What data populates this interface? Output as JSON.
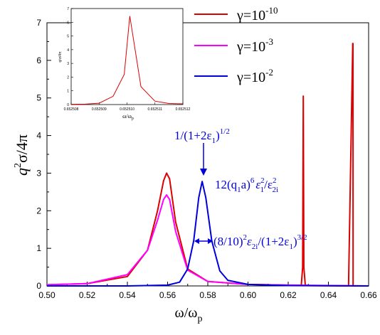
{
  "chart_data": {
    "type": "line",
    "xlabel_main": "ω/ω",
    "xlabel_sub": "p",
    "ylabel_parts": {
      "q": "q",
      "sup": "2",
      "rest": "σ/4π"
    },
    "xlim": [
      0.5,
      0.66
    ],
    "ylim": [
      0,
      7
    ],
    "xticks": [
      "0.50",
      "0.52",
      "0.54",
      "0.56",
      "0.58",
      "0.60",
      "0.62",
      "0.64",
      "0.66"
    ],
    "yticks": [
      "0",
      "1",
      "2",
      "3",
      "4",
      "5",
      "6",
      "7"
    ],
    "legend_position": "top-right",
    "series": [
      {
        "name": "γ=10",
        "exponent": "-10",
        "color": "#dd0000",
        "x": [
          0.5,
          0.52,
          0.54,
          0.55,
          0.555,
          0.558,
          0.5595,
          0.561,
          0.564,
          0.57,
          0.58,
          0.6,
          0.62,
          0.6265,
          0.6272,
          0.6275,
          0.6278,
          0.6285,
          0.63,
          0.65,
          0.6521,
          0.6522,
          0.6523,
          0.66
        ],
        "y": [
          0.03,
          0.06,
          0.25,
          0.95,
          2.0,
          2.8,
          3.0,
          2.85,
          1.7,
          0.45,
          0.12,
          0.04,
          0.02,
          0.02,
          0.5,
          5.05,
          0.5,
          0.02,
          0.01,
          0.0,
          6.45,
          6.45,
          0.0,
          0.0
        ]
      },
      {
        "name": "γ=10",
        "exponent": "-3",
        "color": "#ff00ff",
        "x": [
          0.5,
          0.52,
          0.54,
          0.55,
          0.555,
          0.558,
          0.5595,
          0.561,
          0.564,
          0.57,
          0.58,
          0.6,
          0.62,
          0.66
        ],
        "y": [
          0.03,
          0.06,
          0.3,
          0.95,
          1.75,
          2.3,
          2.42,
          2.3,
          1.45,
          0.42,
          0.12,
          0.04,
          0.02,
          0.0
        ]
      },
      {
        "name": "γ=10",
        "exponent": "-2",
        "color": "#0000dd",
        "x": [
          0.5,
          0.54,
          0.56,
          0.566,
          0.57,
          0.573,
          0.5755,
          0.5772,
          0.579,
          0.582,
          0.586,
          0.59,
          0.6,
          0.62,
          0.66
        ],
        "y": [
          0.0,
          0.0,
          0.02,
          0.1,
          0.45,
          1.2,
          2.35,
          2.78,
          2.35,
          1.2,
          0.4,
          0.15,
          0.04,
          0.01,
          0.0
        ]
      }
    ],
    "annotations": {
      "peak_main": "1/(1+2ε",
      "peak_sub": "1",
      "peak_close": ")",
      "peak_sup": "1/2",
      "height_a": "12(q",
      "height_a_sub": "1",
      "height_b": "a)",
      "height_b_sup": "6",
      "height_c": "ε",
      "height_c_sup": "2",
      "height_c_sub": "1",
      "height_d": "/ε",
      "height_d_sup": "2",
      "height_d_sub": "2i",
      "width_a": "(8/10)",
      "width_a_sup": "2",
      "width_b": "ε",
      "width_b_sub": "2i",
      "width_c": "/(1+2ε",
      "width_c_sub": "1",
      "width_d": ")",
      "width_d_sup": "3/2"
    },
    "inset": {
      "type": "line",
      "color": "#dd0000",
      "xlabel_main": "ω/ω",
      "xlabel_sub": "p",
      "ylabel": "q²σ/4π",
      "xticks": [
        "0.652508",
        "0.652509",
        "0.652510",
        "0.652511",
        "0.652512"
      ],
      "yticks": [
        "0",
        "1",
        "2",
        "3",
        "4",
        "5",
        "6",
        "7"
      ],
      "xlim": [
        0.652508,
        0.652512
      ],
      "ylim": [
        0,
        7
      ],
      "x": [
        0.652508,
        0.6525085,
        0.652509,
        0.6525095,
        0.6525099,
        0.6525101,
        0.6525105,
        0.652511,
        0.6525115,
        0.652512
      ],
      "y": [
        0.02,
        0.03,
        0.1,
        0.6,
        2.2,
        6.45,
        1.3,
        0.25,
        0.08,
        0.05
      ]
    }
  }
}
